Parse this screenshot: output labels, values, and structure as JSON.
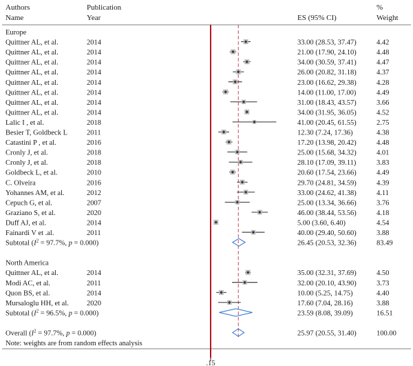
{
  "header": {
    "authors": "Authors",
    "name": "Name",
    "publication": "Publication",
    "year": "Year",
    "es": "ES (95% CI)",
    "pct": "%",
    "weight": "Weight"
  },
  "footnote": "Note: weights are from random effects analysis",
  "axis_tick_label": ".15",
  "colors": {
    "null_line": "#b0171f",
    "overall_line": "#c24a5a",
    "diamond": "#2b6fd6",
    "marker": "#333333"
  },
  "chart_data": {
    "type": "forest",
    "groups": [
      {
        "name": "Europe",
        "studies": [
          {
            "author": "Quittner AL, et al.",
            "year": "2014",
            "es": 33.0,
            "lo": 28.53,
            "hi": 37.47,
            "es_text": "33.00 (28.53, 37.47)",
            "weight": "4.42"
          },
          {
            "author": "Quittner AL, et al.",
            "year": "2014",
            "es": 21.0,
            "lo": 17.9,
            "hi": 24.1,
            "es_text": "21.00 (17.90, 24.10)",
            "weight": "4.48"
          },
          {
            "author": "Quittner AL, et al.",
            "year": "2014",
            "es": 34.0,
            "lo": 30.59,
            "hi": 37.41,
            "es_text": "34.00 (30.59, 37.41)",
            "weight": "4.47"
          },
          {
            "author": "Quittner AL, et al.",
            "year": "2014",
            "es": 26.0,
            "lo": 20.82,
            "hi": 31.18,
            "es_text": "26.00 (20.82, 31.18)",
            "weight": "4.37"
          },
          {
            "author": "Quittner AL, et al.",
            "year": "2014",
            "es": 23.0,
            "lo": 16.62,
            "hi": 29.38,
            "es_text": "23.00 (16.62, 29.38)",
            "weight": "4.28"
          },
          {
            "author": "Quittner AL, et al.",
            "year": "2014",
            "es": 14.0,
            "lo": 11.0,
            "hi": 17.0,
            "es_text": "14.00 (11.00, 17.00)",
            "weight": "4.49"
          },
          {
            "author": "Quittner AL, et al.",
            "year": "2014",
            "es": 31.0,
            "lo": 18.43,
            "hi": 43.57,
            "es_text": "31.00 (18.43, 43.57)",
            "weight": "3.66"
          },
          {
            "author": "Quittner AL, et al.",
            "year": "2014",
            "es": 34.0,
            "lo": 31.95,
            "hi": 36.05,
            "es_text": "34.00 (31.95, 36.05)",
            "weight": "4.52"
          },
          {
            "author": "Lalic I , et al.",
            "year": "2018",
            "es": 41.0,
            "lo": 20.45,
            "hi": 61.55,
            "es_text": "41.00 (20.45, 61.55)",
            "weight": "2.75"
          },
          {
            "author": "Besier T, Goldbeck L",
            "year": "2011",
            "es": 12.3,
            "lo": 7.24,
            "hi": 17.36,
            "es_text": "12.30 (7.24, 17.36)",
            "weight": "4.38"
          },
          {
            "author": "Catastini P , et al.",
            "year": "2016",
            "es": 17.2,
            "lo": 13.98,
            "hi": 20.42,
            "es_text": "17.20 (13.98, 20.42)",
            "weight": "4.48"
          },
          {
            "author": "Cronly J, et al.",
            "year": "2018",
            "es": 25.0,
            "lo": 15.68,
            "hi": 34.32,
            "es_text": "25.00 (15.68, 34.32)",
            "weight": "4.01"
          },
          {
            "author": "Cronly J, et al.",
            "year": "2018",
            "es": 28.1,
            "lo": 17.09,
            "hi": 39.11,
            "es_text": "28.10 (17.09, 39.11)",
            "weight": "3.83"
          },
          {
            "author": "Goldbeck L, et al.",
            "year": "2010",
            "es": 20.6,
            "lo": 17.54,
            "hi": 23.66,
            "es_text": "20.60 (17.54, 23.66)",
            "weight": "4.49"
          },
          {
            "author": "C. Olveira",
            "year": "2016",
            "es": 29.7,
            "lo": 24.81,
            "hi": 34.59,
            "es_text": "29.70 (24.81, 34.59)",
            "weight": "4.39"
          },
          {
            "author": "Yohannes AM, et al.",
            "year": "2012",
            "es": 33.0,
            "lo": 24.62,
            "hi": 41.38,
            "es_text": "33.00 (24.62, 41.38)",
            "weight": "4.11"
          },
          {
            "author": "Cepuch G, et al.",
            "year": "2007",
            "es": 25.0,
            "lo": 13.34,
            "hi": 36.66,
            "es_text": "25.00 (13.34, 36.66)",
            "weight": "3.76"
          },
          {
            "author": "Graziano S, et al.",
            "year": "2020",
            "es": 46.0,
            "lo": 38.44,
            "hi": 53.56,
            "es_text": "46.00 (38.44, 53.56)",
            "weight": "4.18"
          },
          {
            "author": "Duff AJ, et al.",
            "year": "2014",
            "es": 5.0,
            "lo": 3.6,
            "hi": 6.4,
            "es_text": "5.00 (3.60, 6.40)",
            "weight": "4.54"
          },
          {
            "author": "Fainardi V et .al.",
            "year": "2011",
            "es": 40.0,
            "lo": 29.4,
            "hi": 50.6,
            "es_text": "40.00 (29.40, 50.60)",
            "weight": "3.88"
          }
        ],
        "subtotal": {
          "label_prefix": "Subtotal (",
          "i2_symbol": "I",
          "i2_sup": "2",
          "label_mid": " = 97.7%, ",
          "p_symbol": "p",
          "label_suffix": " = 0.000)",
          "es": 26.45,
          "lo": 20.53,
          "hi": 32.36,
          "es_text": "26.45 (20.53, 32.36)",
          "weight": "83.49"
        }
      },
      {
        "name": "North America",
        "studies": [
          {
            "author": "Quittner AL, et al.",
            "year": "2014",
            "es": 35.0,
            "lo": 32.31,
            "hi": 37.69,
            "es_text": "35.00 (32.31, 37.69)",
            "weight": "4.50"
          },
          {
            "author": "Modi AC, et al.",
            "year": "2011",
            "es": 32.0,
            "lo": 20.1,
            "hi": 43.9,
            "es_text": "32.00 (20.10, 43.90)",
            "weight": "3.73"
          },
          {
            "author": "Quon BS, et al.",
            "year": "2014",
            "es": 10.0,
            "lo": 5.25,
            "hi": 14.75,
            "es_text": "10.00 (5.25, 14.75)",
            "weight": "4.40"
          },
          {
            "author": "Mursaloglu HH, et al.",
            "year": "2020",
            "es": 17.6,
            "lo": 7.04,
            "hi": 28.16,
            "es_text": "17.60 (7.04, 28.16)",
            "weight": "3.88"
          }
        ],
        "subtotal": {
          "label_prefix": "Subtotal (",
          "i2_symbol": "I",
          "i2_sup": "2",
          "label_mid": " = 96.5%, ",
          "p_symbol": "p",
          "label_suffix": " = 0.000)",
          "es": 23.59,
          "lo": 8.08,
          "hi": 39.09,
          "es_text": "23.59 (8.08, 39.09)",
          "weight": "16.51"
        }
      }
    ],
    "overall": {
      "label_prefix": "Overall (",
      "i2_symbol": "I",
      "i2_sup": "2",
      "label_mid": " = 97.7%, ",
      "p_symbol": "p",
      "label_suffix": " = 0.000)",
      "es": 25.97,
      "lo": 20.55,
      "hi": 31.4,
      "es_text": "25.97 (20.55, 31.40)",
      "weight": "100.00"
    }
  }
}
